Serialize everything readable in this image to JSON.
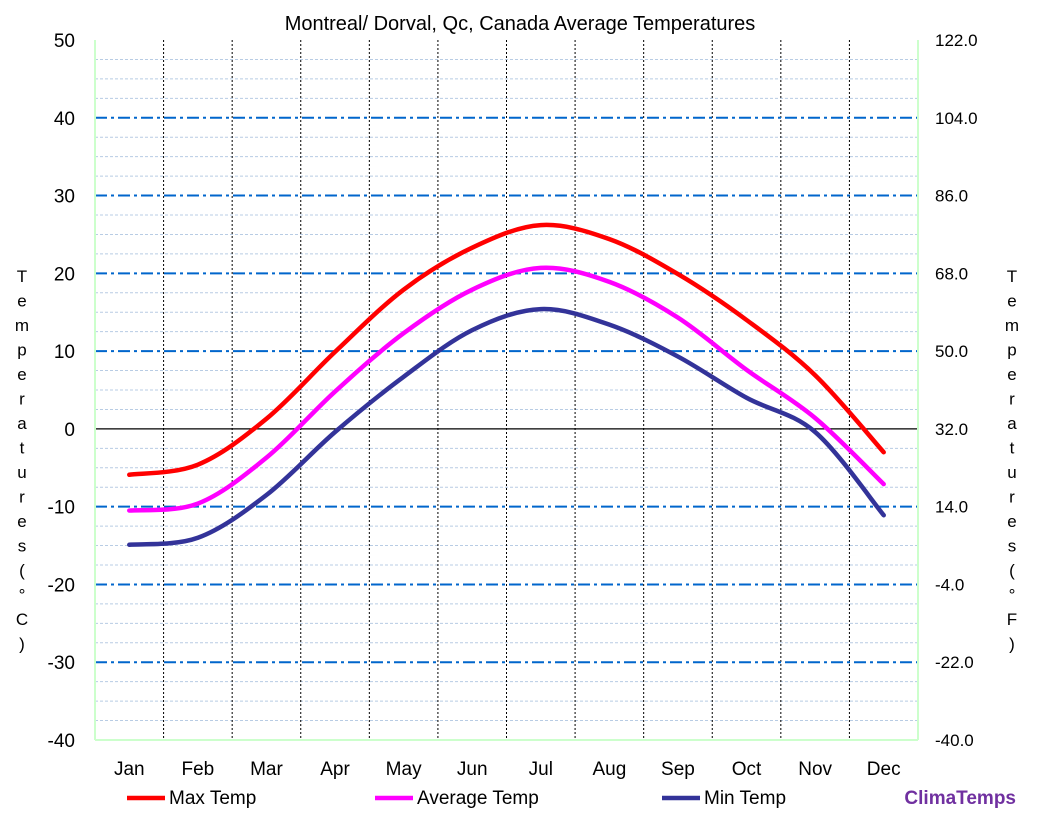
{
  "chart_data": {
    "type": "line",
    "title": "Montreal/ Dorval, Qc, Canada Average Temperatures",
    "ylabel": "Temperatures (°C)",
    "ylabel_right": "Temperatures (°F)",
    "categories": [
      "Jan",
      "Feb",
      "Mar",
      "Apr",
      "May",
      "Jun",
      "Jul",
      "Aug",
      "Sep",
      "Oct",
      "Nov",
      "Dec"
    ],
    "ylim": [
      -40,
      50
    ],
    "yticks": [
      "50",
      "40",
      "30",
      "20",
      "10",
      "0",
      "-10",
      "-20",
      "-30",
      "-40"
    ],
    "yticks_right": [
      "122.0",
      "104.0",
      "86.0",
      "68.0",
      "50.0",
      "32.0",
      "14.0",
      "-4.0",
      "-22.0",
      "-40.0"
    ],
    "grid": true,
    "legend_position": "bottom",
    "series": [
      {
        "name": "Max Temp",
        "color": "#ff0000",
        "values": [
          -5.9,
          -4.6,
          1.3,
          9.9,
          17.9,
          23.3,
          26.2,
          24.4,
          19.9,
          14.0,
          6.9,
          -3.0
        ]
      },
      {
        "name": "Average Temp",
        "color": "#ff00ff",
        "values": [
          -10.5,
          -9.6,
          -3.7,
          4.8,
          12.3,
          17.9,
          20.7,
          18.9,
          14.3,
          7.6,
          1.4,
          -7.1
        ]
      },
      {
        "name": "Min Temp",
        "color": "#333399",
        "values": [
          -14.9,
          -14.0,
          -8.5,
          -0.4,
          6.7,
          12.7,
          15.4,
          13.4,
          9.3,
          4.0,
          -0.4,
          -11.1
        ]
      }
    ]
  },
  "brand": "ClimaTemps",
  "brand_color": "#7030a0"
}
